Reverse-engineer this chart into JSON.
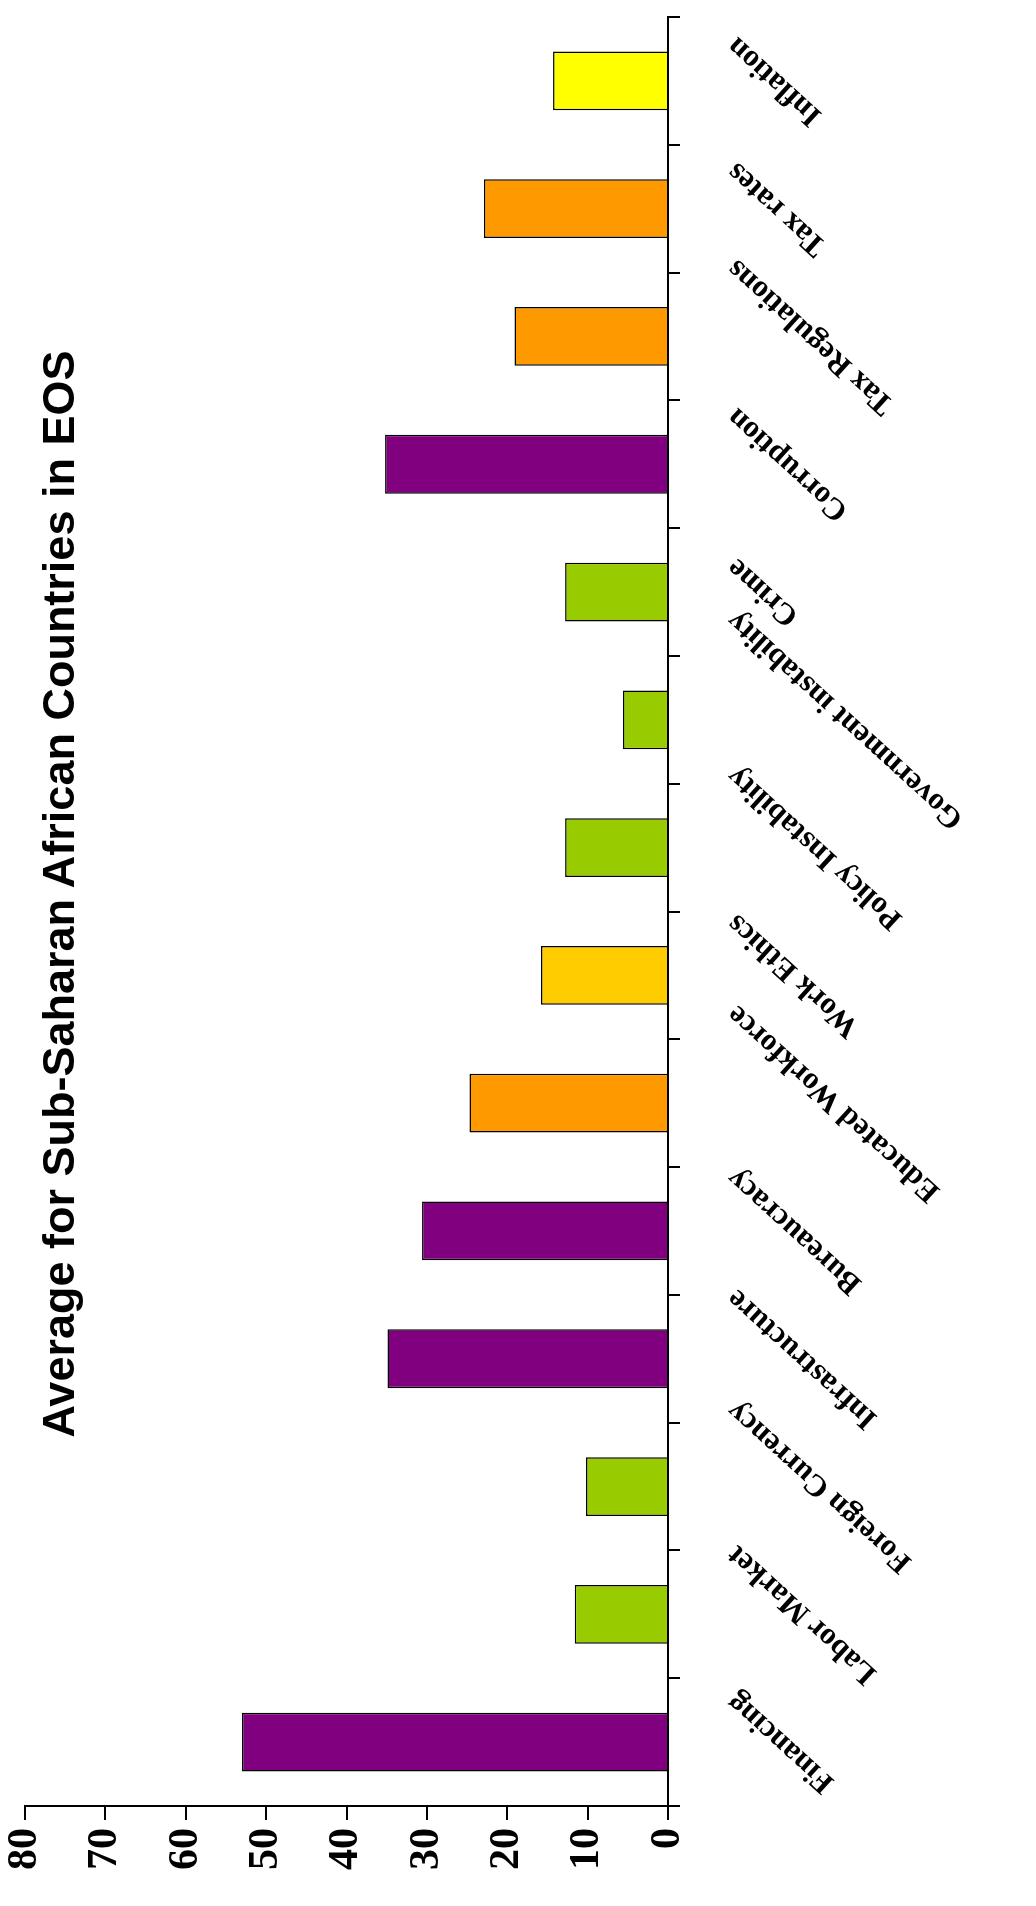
{
  "chart_data": {
    "type": "bar",
    "orientation": "horizontal",
    "title": "Average for Sub-Saharan African Countries in EOS",
    "categories": [
      "Inflation",
      "Tax rates",
      "Tax Regulations",
      "Corruption",
      "Crime",
      "Government instability",
      "Policy Instability",
      "Work Ethics",
      "Educated Workforce",
      "Bureaucracy",
      "Infrastructure",
      "Foreign Currency",
      "Labor Market",
      "Financing"
    ],
    "values": [
      14.3,
      22.9,
      19.1,
      35.2,
      12.8,
      5.6,
      12.8,
      15.8,
      24.7,
      30.6,
      34.9,
      10.2,
      11.6,
      53.0
    ],
    "colors": [
      "#ffff00",
      "#ff9900",
      "#ff9900",
      "#800080",
      "#99cc00",
      "#99cc00",
      "#99cc00",
      "#ffcc00",
      "#ff9900",
      "#800080",
      "#800080",
      "#99cc00",
      "#99cc00",
      "#800080"
    ],
    "xlim": [
      80,
      0
    ],
    "xticks": [
      80,
      70,
      60,
      50,
      40,
      30,
      20,
      10,
      0
    ],
    "grid": false,
    "legend": false
  }
}
